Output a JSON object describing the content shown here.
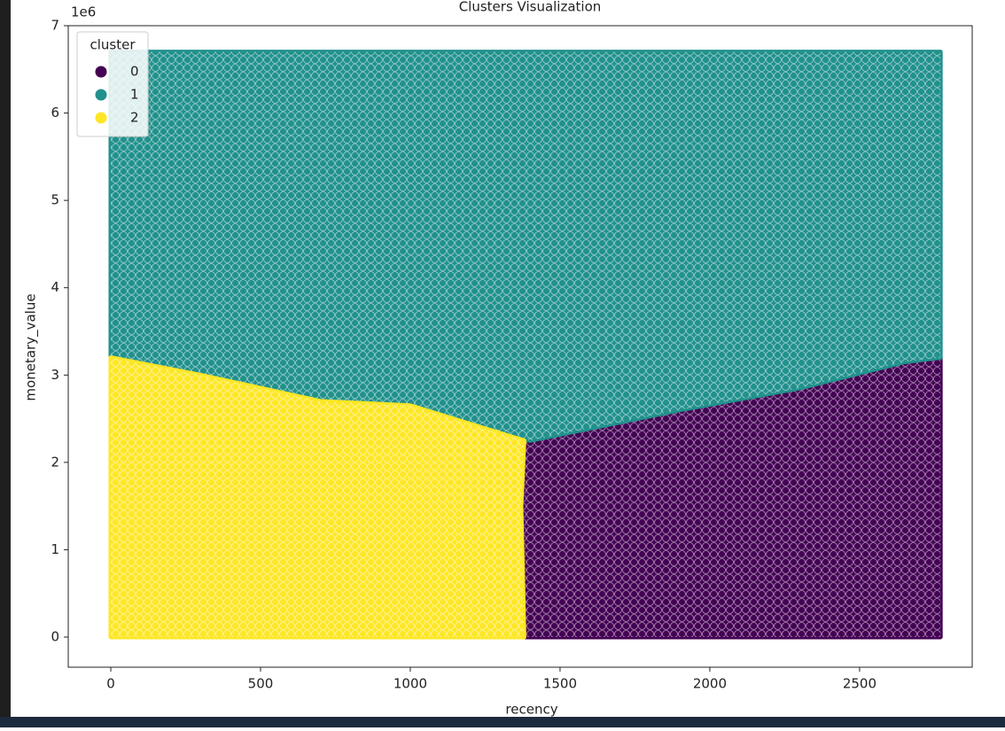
{
  "chart_data": {
    "type": "scatter",
    "title": "Clusters Visualization",
    "x_label": "recency",
    "y_label": "monetary_value",
    "y_offset_text": "1e6",
    "legend_title": "cluster",
    "legend_position": "upper left",
    "xlim": [
      -142,
      2876
    ],
    "ylim": [
      -0.345,
      7.0
    ],
    "xticks": [
      0,
      500,
      1000,
      1500,
      2000,
      2500
    ],
    "yticks": [
      0,
      1,
      2,
      3,
      4,
      5,
      6,
      7
    ],
    "series": [
      {
        "name": "0",
        "color": "#440154",
        "x": [
          1380,
          1900,
          2300,
          2650,
          2770,
          2770,
          1380,
          1370
        ],
        "values": [
          2.25,
          2.6,
          2.85,
          3.15,
          3.2,
          0,
          0,
          1.5
        ]
      },
      {
        "name": "1",
        "color": "#21918c",
        "x": [
          0,
          2770,
          2770,
          2650,
          2300,
          1900,
          1400,
          1000,
          700,
          300,
          0
        ],
        "values": [
          6.7,
          6.7,
          3.2,
          3.15,
          2.85,
          2.6,
          2.25,
          2.65,
          2.7,
          3.0,
          3.2
        ]
      },
      {
        "name": "2",
        "color": "#fde725",
        "x": [
          0,
          300,
          700,
          1000,
          1380,
          1370,
          1380,
          0
        ],
        "values": [
          3.2,
          3.0,
          2.7,
          2.65,
          2.25,
          1.5,
          0,
          0
        ]
      }
    ]
  }
}
